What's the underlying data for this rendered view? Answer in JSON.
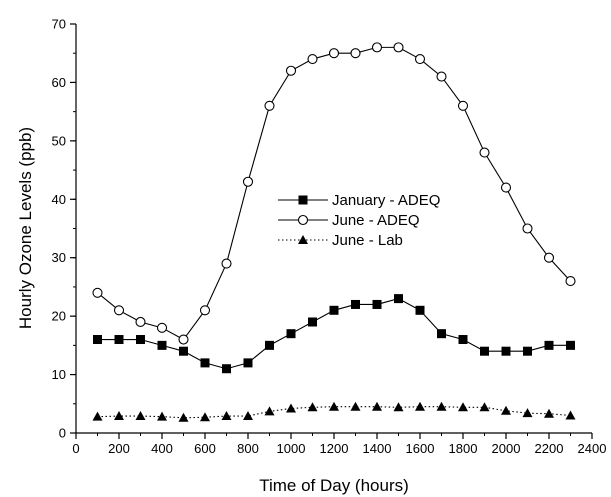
{
  "chart_data": {
    "type": "line",
    "xlabel": "Time of Day (hours)",
    "ylabel": "Hourly Ozone Levels (ppb)",
    "xlim": [
      0,
      2400
    ],
    "ylim": [
      0,
      70
    ],
    "x_major_ticks": [
      0,
      200,
      400,
      600,
      800,
      1000,
      1200,
      1400,
      1600,
      1800,
      2000,
      2200,
      2400
    ],
    "x_minor_step": 100,
    "y_major_ticks": [
      0,
      10,
      20,
      30,
      40,
      50,
      60,
      70
    ],
    "y_minor_step": 5,
    "grid": false,
    "legend_position": "center-right",
    "x": [
      100,
      200,
      300,
      400,
      500,
      600,
      700,
      800,
      900,
      1000,
      1100,
      1200,
      1300,
      1400,
      1500,
      1600,
      1700,
      1800,
      1900,
      2000,
      2100,
      2200,
      2300
    ],
    "series": [
      {
        "name": "January - ADEQ",
        "marker": "filled-square",
        "line_style": "solid",
        "values": [
          16,
          16,
          16,
          15,
          14,
          12,
          11,
          12,
          15,
          17,
          19,
          21,
          22,
          22,
          23,
          21,
          17,
          16,
          14,
          14,
          14,
          15,
          15
        ]
      },
      {
        "name": "June - ADEQ",
        "marker": "open-circle",
        "line_style": "solid",
        "values": [
          24,
          21,
          19,
          18,
          16,
          21,
          29,
          43,
          56,
          62,
          64,
          65,
          65,
          66,
          66,
          64,
          61,
          56,
          48,
          42,
          35,
          30,
          26
        ]
      },
      {
        "name": "June - Lab",
        "marker": "filled-triangle",
        "line_style": "dotted",
        "values": [
          2.8,
          2.9,
          2.9,
          2.8,
          2.6,
          2.7,
          2.9,
          2.9,
          3.7,
          4.2,
          4.4,
          4.5,
          4.5,
          4.5,
          4.4,
          4.5,
          4.5,
          4.4,
          4.4,
          3.8,
          3.4,
          3.3,
          3.0
        ]
      }
    ]
  }
}
